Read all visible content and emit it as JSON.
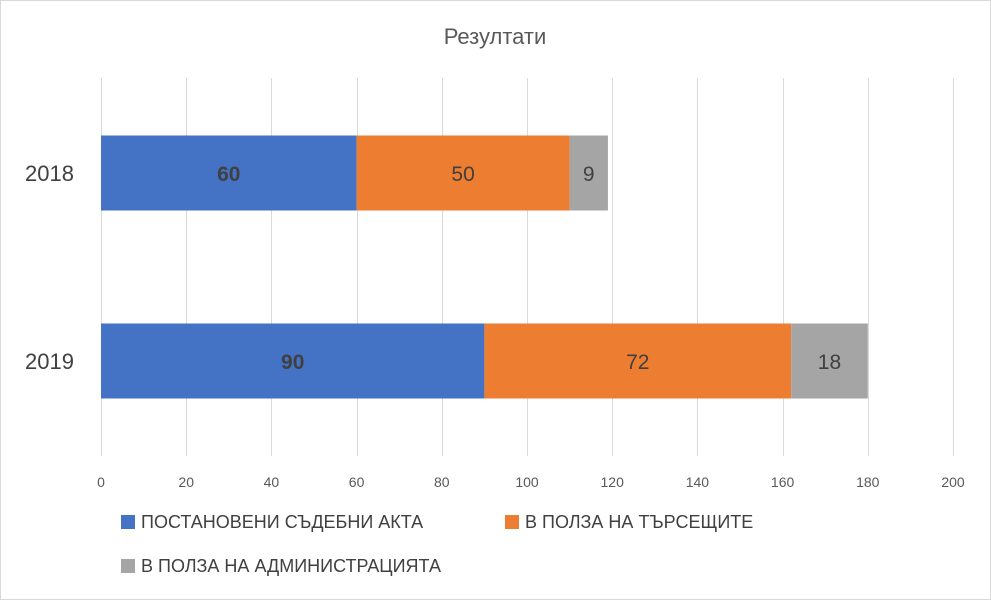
{
  "chart_data": {
    "type": "bar",
    "orientation": "horizontal",
    "stacked": true,
    "title": "Резултати",
    "categories": [
      "2018",
      "2019"
    ],
    "series": [
      {
        "name": "ПОСТАНОВЕНИ СЪДЕБНИ АКТА",
        "values": [
          60,
          90
        ],
        "color": "#4472C4",
        "label_bold": true
      },
      {
        "name": "В ПОЛЗА НА ТЪРСЕЩИТЕ",
        "values": [
          50,
          72
        ],
        "color": "#ED7D31",
        "label_bold": false
      },
      {
        "name": "В ПОЛЗА НА АДМИНИСТРАЦИЯТА",
        "values": [
          9,
          18
        ],
        "color": "#A5A5A5",
        "label_bold": false
      }
    ],
    "xlim": [
      0,
      200
    ],
    "xticks": [
      "0",
      "20",
      "40",
      "60",
      "80",
      "100",
      "120",
      "140",
      "160",
      "180",
      "200"
    ],
    "xlabel": "",
    "ylabel": "",
    "grid": "vertical",
    "legend_position": "bottom-left"
  }
}
